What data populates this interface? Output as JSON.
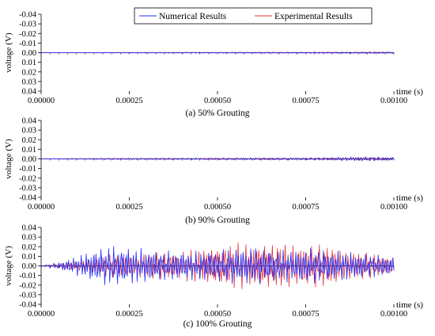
{
  "colors": {
    "numerical": "#1f2fff",
    "experimental": "#e8333a",
    "axis": "#000000",
    "legend_border": "#000000"
  },
  "legend": {
    "items": [
      {
        "label": "Numerical Results",
        "color": "#1f2fff"
      },
      {
        "label": "Experimental Results",
        "color": "#e8333a"
      }
    ]
  },
  "chart_data": [
    {
      "type": "line",
      "caption": "(a) 50% Grouting",
      "xlabel": "time (s)",
      "ylabel": "voltage (V)",
      "xlim": [
        0,
        0.001
      ],
      "ylim": [
        0.04,
        -0.04
      ],
      "y_inverted": true,
      "xticks": [
        "0.00000",
        "0.00025",
        "0.00050",
        "0.00075",
        "0.00100"
      ],
      "yticks": [
        "-0.04",
        "-0.03",
        "-0.02",
        "-0.01",
        "0.00",
        "0.01",
        "0.02",
        "0.03",
        "0.04"
      ],
      "legend_position": "top-right",
      "envelope": {
        "x": [
          0,
          0.0001,
          0.0002,
          0.0003,
          0.0004,
          0.0005,
          0.0006,
          0.0007,
          0.0008,
          0.0009,
          0.001
        ],
        "numerical": [
          0.0001,
          0.0002,
          0.0004,
          0.0005,
          0.0006,
          0.0006,
          0.0007,
          0.0007,
          0.0008,
          0.001,
          0.001
        ],
        "experimental": [
          0.0001,
          0.0002,
          0.0003,
          0.0004,
          0.0005,
          0.0005,
          0.0006,
          0.0006,
          0.0007,
          0.0008,
          0.0008
        ]
      },
      "series": [
        {
          "name": "Numerical Results"
        },
        {
          "name": "Experimental Results"
        }
      ]
    },
    {
      "type": "line",
      "caption": "(b) 90% Grouting",
      "xlabel": "time (s)",
      "ylabel": "voltage (V)",
      "xlim": [
        0,
        0.001
      ],
      "ylim": [
        -0.04,
        0.04
      ],
      "y_inverted": false,
      "xticks": [
        "0.00000",
        "0.00025",
        "0.00050",
        "0.00075",
        "0.00100"
      ],
      "yticks": [
        "0.04",
        "0.03",
        "0.02",
        "0.01",
        "0.00",
        "-0.01",
        "-0.02",
        "-0.03",
        "-0.04"
      ],
      "envelope": {
        "x": [
          0,
          0.0001,
          0.0002,
          0.0003,
          0.0004,
          0.0005,
          0.0006,
          0.0007,
          0.0008,
          0.0009,
          0.001
        ],
        "numerical": [
          0.0002,
          0.0005,
          0.0008,
          0.0009,
          0.001,
          0.0011,
          0.0012,
          0.0013,
          0.0015,
          0.0025,
          0.002
        ],
        "experimental": [
          0.0002,
          0.0004,
          0.0006,
          0.0007,
          0.0008,
          0.0009,
          0.001,
          0.0011,
          0.0012,
          0.0018,
          0.0016
        ]
      },
      "series": [
        {
          "name": "Numerical Results"
        },
        {
          "name": "Experimental Results"
        }
      ]
    },
    {
      "type": "line",
      "caption": "(c) 100% Grouting",
      "xlabel": "time (s)",
      "ylabel": "voltage (V)",
      "xlim": [
        0,
        0.001
      ],
      "ylim": [
        -0.04,
        0.04
      ],
      "y_inverted": false,
      "xticks": [
        "0.00000",
        "0.00025",
        "0.00050",
        "0.00075",
        "0.00100"
      ],
      "yticks": [
        "0.04",
        "0.03",
        "0.02",
        "0.01",
        "0.00",
        "-0.01",
        "-0.02",
        "-0.03",
        "-0.04"
      ],
      "envelope": {
        "x": [
          0,
          5e-05,
          0.0001,
          0.00015,
          0.0002,
          0.00025,
          0.0003,
          0.00035,
          0.0004,
          0.00045,
          0.0005,
          0.00055,
          0.0006,
          0.00065,
          0.0007,
          0.00075,
          0.0008,
          0.00085,
          0.0009,
          0.00095,
          0.001
        ],
        "numerical": [
          0.0005,
          0.004,
          0.01,
          0.018,
          0.022,
          0.02,
          0.018,
          0.016,
          0.015,
          0.016,
          0.017,
          0.02,
          0.02,
          0.018,
          0.017,
          0.019,
          0.018,
          0.016,
          0.014,
          0.012,
          0.01
        ],
        "experimental": [
          0.0003,
          0.002,
          0.005,
          0.009,
          0.012,
          0.013,
          0.014,
          0.015,
          0.016,
          0.018,
          0.021,
          0.024,
          0.025,
          0.024,
          0.023,
          0.024,
          0.022,
          0.019,
          0.015,
          0.012,
          0.01
        ]
      },
      "series": [
        {
          "name": "Numerical Results"
        },
        {
          "name": "Experimental Results"
        }
      ]
    }
  ]
}
